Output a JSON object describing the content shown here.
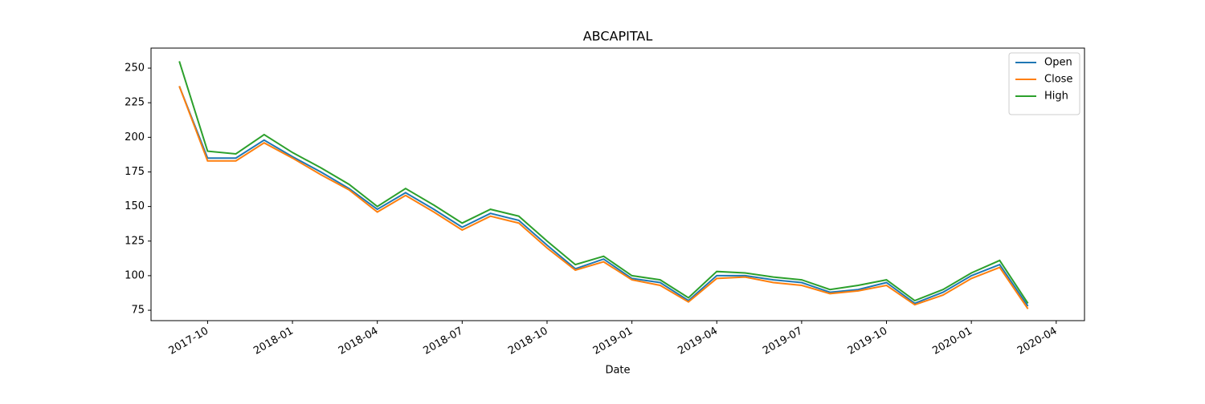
{
  "chart_data": {
    "type": "line",
    "title": "ABCAPITAL",
    "x_label": "Date",
    "x": [
      "2017-09",
      "2017-10",
      "2017-11",
      "2017-12",
      "2018-01",
      "2018-02",
      "2018-03",
      "2018-04",
      "2018-05",
      "2018-06",
      "2018-07",
      "2018-08",
      "2018-09",
      "2018-10",
      "2018-11",
      "2018-12",
      "2019-01",
      "2019-02",
      "2019-03",
      "2019-04",
      "2019-05",
      "2019-06",
      "2019-07",
      "2019-08",
      "2019-09",
      "2019-10",
      "2019-11",
      "2019-12",
      "2020-01",
      "2020-02",
      "2020-03"
    ],
    "series": [
      {
        "name": "Open",
        "color": "#1f77b4",
        "values": [
          237,
          185,
          185,
          198,
          186,
          175,
          163,
          148,
          160,
          148,
          135,
          145,
          140,
          122,
          105,
          112,
          98,
          95,
          82,
          100,
          100,
          97,
          95,
          88,
          90,
          95,
          80,
          88,
          100,
          108,
          78
        ]
      },
      {
        "name": "Close",
        "color": "#ff7f0e",
        "values": [
          237,
          183,
          183,
          196,
          185,
          173,
          162,
          146,
          158,
          146,
          133,
          143,
          138,
          120,
          104,
          110,
          97,
          93,
          81,
          98,
          99,
          95,
          93,
          87,
          89,
          93,
          79,
          86,
          98,
          106,
          76
        ]
      },
      {
        "name": "High",
        "color": "#2ca02c",
        "values": [
          255,
          190,
          188,
          202,
          189,
          178,
          166,
          150,
          163,
          151,
          138,
          148,
          143,
          125,
          108,
          114,
          100,
          97,
          84,
          103,
          102,
          99,
          97,
          90,
          93,
          97,
          82,
          90,
          102,
          111,
          80
        ]
      }
    ],
    "xlim": [
      "2017-08",
      "2020-05"
    ],
    "xticks": [
      "2017-10",
      "2018-01",
      "2018-04",
      "2018-07",
      "2018-10",
      "2019-01",
      "2019-04",
      "2019-07",
      "2019-10",
      "2020-01",
      "2020-04"
    ],
    "ylim": [
      67.5,
      264.5
    ],
    "yticks": [
      75,
      100,
      125,
      150,
      175,
      200,
      225,
      250
    ],
    "grid": false,
    "legend": "upper right"
  }
}
